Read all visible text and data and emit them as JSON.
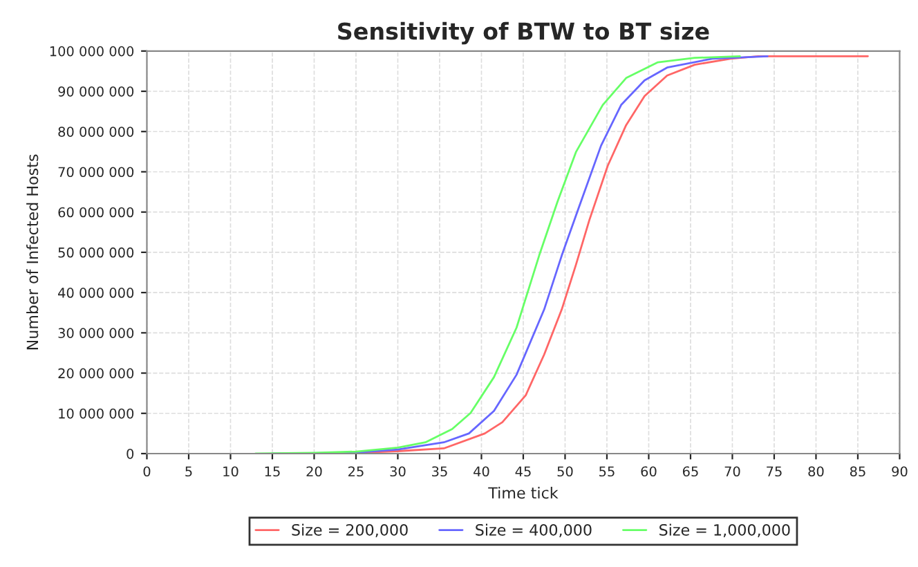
{
  "chart_data": {
    "type": "line",
    "title": "Sensitivity of BTW to BT size",
    "xlabel": "Time tick",
    "ylabel": "Number of Infected Hosts",
    "xlim": [
      0,
      90
    ],
    "xticks": [
      0,
      5,
      10,
      15,
      20,
      25,
      30,
      35,
      40,
      45,
      50,
      55,
      60,
      65,
      70,
      75,
      80,
      85,
      90
    ],
    "ylim": [
      0,
      100000000
    ],
    "yticks": [
      {
        "value": 0,
        "label": "0"
      },
      {
        "value": 10000000,
        "label": "10 000 000"
      },
      {
        "value": 20000000,
        "label": "20 000 000"
      },
      {
        "value": 30000000,
        "label": "30 000 000"
      },
      {
        "value": 40000000,
        "label": "40 000 000"
      },
      {
        "value": 50000000,
        "label": "50 000 000"
      },
      {
        "value": 60000000,
        "label": "60 000 000"
      },
      {
        "value": 70000000,
        "label": "70 000 000"
      },
      {
        "value": 80000000,
        "label": "80 000 000"
      },
      {
        "value": 90000000,
        "label": "90 000 000"
      },
      {
        "value": 100000000,
        "label": "100 000 000"
      }
    ],
    "grid": true,
    "legend": "bottom",
    "marker": "none",
    "line_style": "solid",
    "series": [
      {
        "name": "Size = 200,000",
        "color": "#ff6666",
        "x": [
          22,
          25,
          30,
          35.5,
          40.4,
          42.5,
          45.3,
          47.5,
          49.6,
          51.3,
          52.9,
          55.1,
          57.3,
          59.5,
          62.2,
          65.5,
          69.8,
          73.1,
          86.2
        ],
        "values": [
          0,
          200000,
          600000,
          1300000,
          5000000,
          7800000,
          14500000,
          24600000,
          35800000,
          46900000,
          58000000,
          71500000,
          81600000,
          88800000,
          93900000,
          96600000,
          98100000,
          98700000,
          98700000
        ]
      },
      {
        "name": "Size = 400,000",
        "color": "#6666ff",
        "x": [
          15,
          20,
          25,
          30,
          35.5,
          38.5,
          41.5,
          44.2,
          47.5,
          49.6,
          51.5,
          54.3,
          56.7,
          59.5,
          62.2,
          67.6,
          74.2
        ],
        "values": [
          0,
          100000,
          300000,
          1000000,
          2800000,
          5000000,
          10600000,
          19600000,
          35800000,
          49200000,
          60300000,
          76500000,
          86600000,
          92700000,
          95900000,
          98100000,
          98700000
        ]
      },
      {
        "name": "Size = 1,000,000",
        "color": "#66ff66",
        "x": [
          13,
          20,
          25,
          30,
          33.3,
          36.5,
          38.7,
          41.5,
          44.2,
          46.9,
          49.1,
          51.3,
          54.5,
          57.3,
          61.1,
          65.5,
          70.9
        ],
        "values": [
          0,
          200000,
          500000,
          1500000,
          2800000,
          6100000,
          10100000,
          19000000,
          31300000,
          49200000,
          62600000,
          74900000,
          86600000,
          93300000,
          97200000,
          98300000,
          98700000
        ]
      }
    ]
  }
}
